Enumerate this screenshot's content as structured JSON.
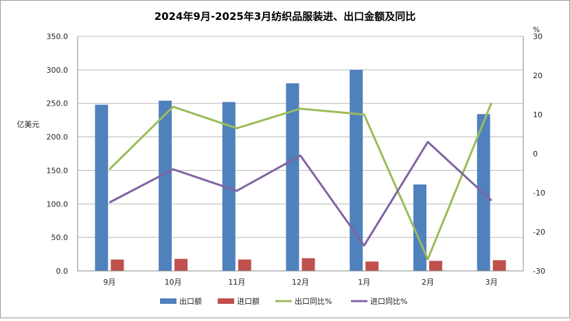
{
  "chart_data": {
    "type": "bar",
    "title": "2024年9月-2025年3月纺织品服装进、出口金额及同比",
    "ylabel": "亿美元",
    "y2label": "%",
    "categories": [
      "9月",
      "10月",
      "11月",
      "12月",
      "1月",
      "2月",
      "3月"
    ],
    "ylim": [
      0,
      350
    ],
    "yticks": [
      "0.0",
      "50.0",
      "100.0",
      "150.0",
      "200.0",
      "250.0",
      "300.0",
      "350.0"
    ],
    "y2lim": [
      -30,
      30
    ],
    "y2ticks": [
      "30",
      "20",
      "10",
      "0",
      "-10",
      "-20",
      "-30"
    ],
    "grid": true,
    "legend_position": "bottom",
    "bar_series": [
      {
        "name": "出口额",
        "color": "#4f81bd",
        "values": [
          248,
          254,
          252,
          280,
          300,
          129,
          234
        ]
      },
      {
        "name": "进口额",
        "color": "#c0504d",
        "values": [
          17,
          18,
          17,
          19,
          14,
          15,
          16
        ]
      }
    ],
    "line_series": [
      {
        "name": "出口同比%",
        "color": "#9bbb59",
        "axis": "right",
        "values": [
          -4,
          12,
          6.5,
          11.5,
          10,
          -27,
          13
        ]
      },
      {
        "name": "进口同比%",
        "color": "#8064a2",
        "axis": "right",
        "values": [
          -12.5,
          -4,
          -9.5,
          -0.5,
          -23.5,
          3,
          -12
        ]
      }
    ]
  }
}
